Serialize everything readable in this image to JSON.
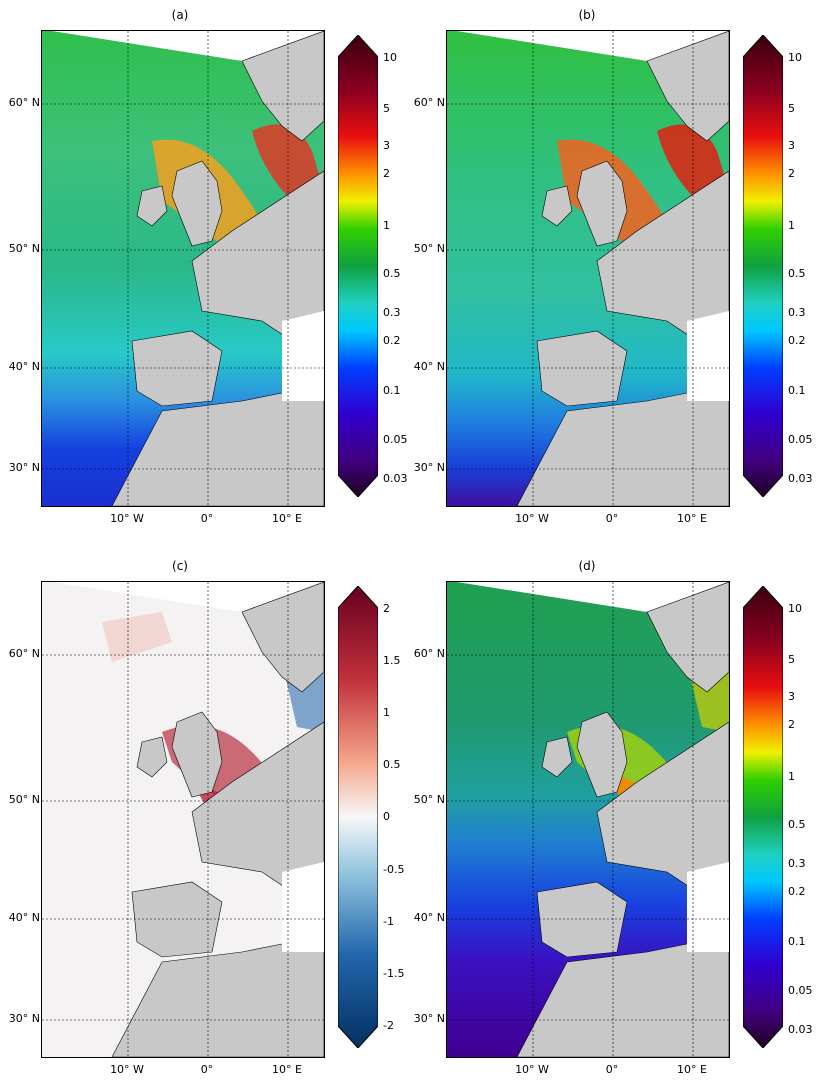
{
  "panels": [
    {
      "id": "a",
      "title": "(a)",
      "lat_labels": [
        "60° N",
        "50° N",
        "40° N",
        "30° N"
      ],
      "lon_labels": [
        "10° W",
        "0°",
        "10° E"
      ],
      "colorbar": {
        "scale": "log",
        "ticks": [
          "10",
          "5",
          "3",
          "2",
          "1",
          "0.5",
          "0.3",
          "0.2",
          "0.1",
          "0.05",
          "0.03"
        ],
        "extend": "both",
        "colormap": "spectral-chlorophyll"
      }
    },
    {
      "id": "b",
      "title": "(b)",
      "lat_labels": [
        "60° N",
        "50° N",
        "40° N",
        "30° N"
      ],
      "lon_labels": [
        "10° W",
        "0°",
        "10° E"
      ],
      "colorbar": {
        "scale": "log",
        "ticks": [
          "10",
          "5",
          "3",
          "2",
          "1",
          "0.5",
          "0.3",
          "0.2",
          "0.1",
          "0.05",
          "0.03"
        ],
        "extend": "both",
        "colormap": "spectral-chlorophyll"
      }
    },
    {
      "id": "c",
      "title": "(c)",
      "lat_labels": [
        "60° N",
        "50° N",
        "40° N",
        "30° N"
      ],
      "lon_labels": [
        "10° W",
        "0°",
        "10° E"
      ],
      "colorbar": {
        "scale": "linear",
        "ticks": [
          "2",
          "1.5",
          "1",
          "0.5",
          "0",
          "-0.5",
          "-1",
          "-1.5",
          "-2"
        ],
        "extend": "both",
        "colormap": "red-white-blue"
      }
    },
    {
      "id": "d",
      "title": "(d)",
      "lat_labels": [
        "60° N",
        "50° N",
        "40° N",
        "30° N"
      ],
      "lon_labels": [
        "10° W",
        "0°",
        "10° E"
      ],
      "colorbar": {
        "scale": "log",
        "ticks": [
          "10",
          "5",
          "3",
          "2",
          "1",
          "0.5",
          "0.3",
          "0.2",
          "0.1",
          "0.05",
          "0.03"
        ],
        "extend": "both",
        "colormap": "spectral-chlorophyll"
      }
    }
  ],
  "colors": {
    "land": "#c8c8c8",
    "coast": "#000000",
    "grid": "#000000"
  }
}
